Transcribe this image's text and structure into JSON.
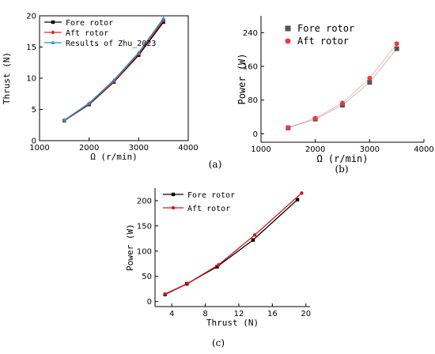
{
  "chart_data": [
    {
      "id": "a",
      "type": "line",
      "panel_label": "(a)",
      "xlabel": "Ω (r/min)",
      "ylabel": "Thrust (N)",
      "xlim": [
        1000,
        4000
      ],
      "ylim": [
        0,
        20
      ],
      "xticks": [
        1000,
        2000,
        3000,
        4000
      ],
      "yticks": [
        0,
        5,
        10,
        15,
        20
      ],
      "legend_position": "top-left",
      "grid": false,
      "series": [
        {
          "name": "Fore rotor",
          "color": "#000000",
          "marker": "square",
          "x": [
            1500,
            2000,
            2500,
            3000,
            3500
          ],
          "y": [
            3.2,
            5.8,
            9.4,
            13.7,
            19.0
          ]
        },
        {
          "name": "Aft rotor",
          "color": "#e8281f",
          "marker": "circle",
          "x": [
            1500,
            2000,
            2500,
            3000,
            3500
          ],
          "y": [
            3.2,
            5.9,
            9.5,
            13.9,
            19.3
          ]
        },
        {
          "name": "Results of Zhu_2023",
          "color": "#1f8fd6",
          "marker": "triangle",
          "x": [
            1500,
            2000,
            2500,
            3000,
            3500
          ],
          "y": [
            3.3,
            6.0,
            9.7,
            14.1,
            19.6
          ]
        }
      ]
    },
    {
      "id": "b",
      "type": "scatter",
      "panel_label": "(b)",
      "xlabel": "Ω (r/min)",
      "ylabel": "Power (W)",
      "xlim": [
        1000,
        4000
      ],
      "ylim": [
        -20,
        280
      ],
      "xticks": [
        1000,
        2000,
        3000,
        4000
      ],
      "yticks": [
        0,
        80,
        160,
        240
      ],
      "legend_position": "top-left",
      "grid": false,
      "series": [
        {
          "name": "Fore rotor",
          "color": "#555555",
          "marker": "square",
          "x": [
            1500,
            2000,
            2500,
            3000,
            3500
          ],
          "y": [
            14,
            35,
            68,
            122,
            202
          ]
        },
        {
          "name": "Aft rotor",
          "color": "#f03a3a",
          "marker": "circle",
          "x": [
            1500,
            2000,
            2500,
            3000,
            3500
          ],
          "y": [
            15,
            37,
            73,
            132,
            214
          ]
        }
      ]
    },
    {
      "id": "c",
      "type": "line",
      "panel_label": "(c)",
      "xlabel": "Thrust (N)",
      "ylabel": "Power (W)",
      "xlim": [
        2,
        20.5
      ],
      "ylim": [
        -10,
        225
      ],
      "xticks": [
        4,
        8,
        12,
        16,
        20
      ],
      "yticks": [
        0,
        50,
        100,
        150,
        200
      ],
      "legend_position": "top-left",
      "grid": false,
      "series": [
        {
          "name": "Fore rotor",
          "color": "#000000",
          "marker": "square",
          "x": [
            3.2,
            5.8,
            9.4,
            13.7,
            19.0
          ],
          "y": [
            14,
            35,
            69,
            122,
            202
          ]
        },
        {
          "name": "Aft rotor",
          "color": "#d8141e",
          "marker": "circle",
          "x": [
            3.2,
            5.9,
            9.6,
            13.9,
            19.5
          ],
          "y": [
            15,
            36,
            73,
            132,
            215
          ]
        }
      ]
    }
  ]
}
